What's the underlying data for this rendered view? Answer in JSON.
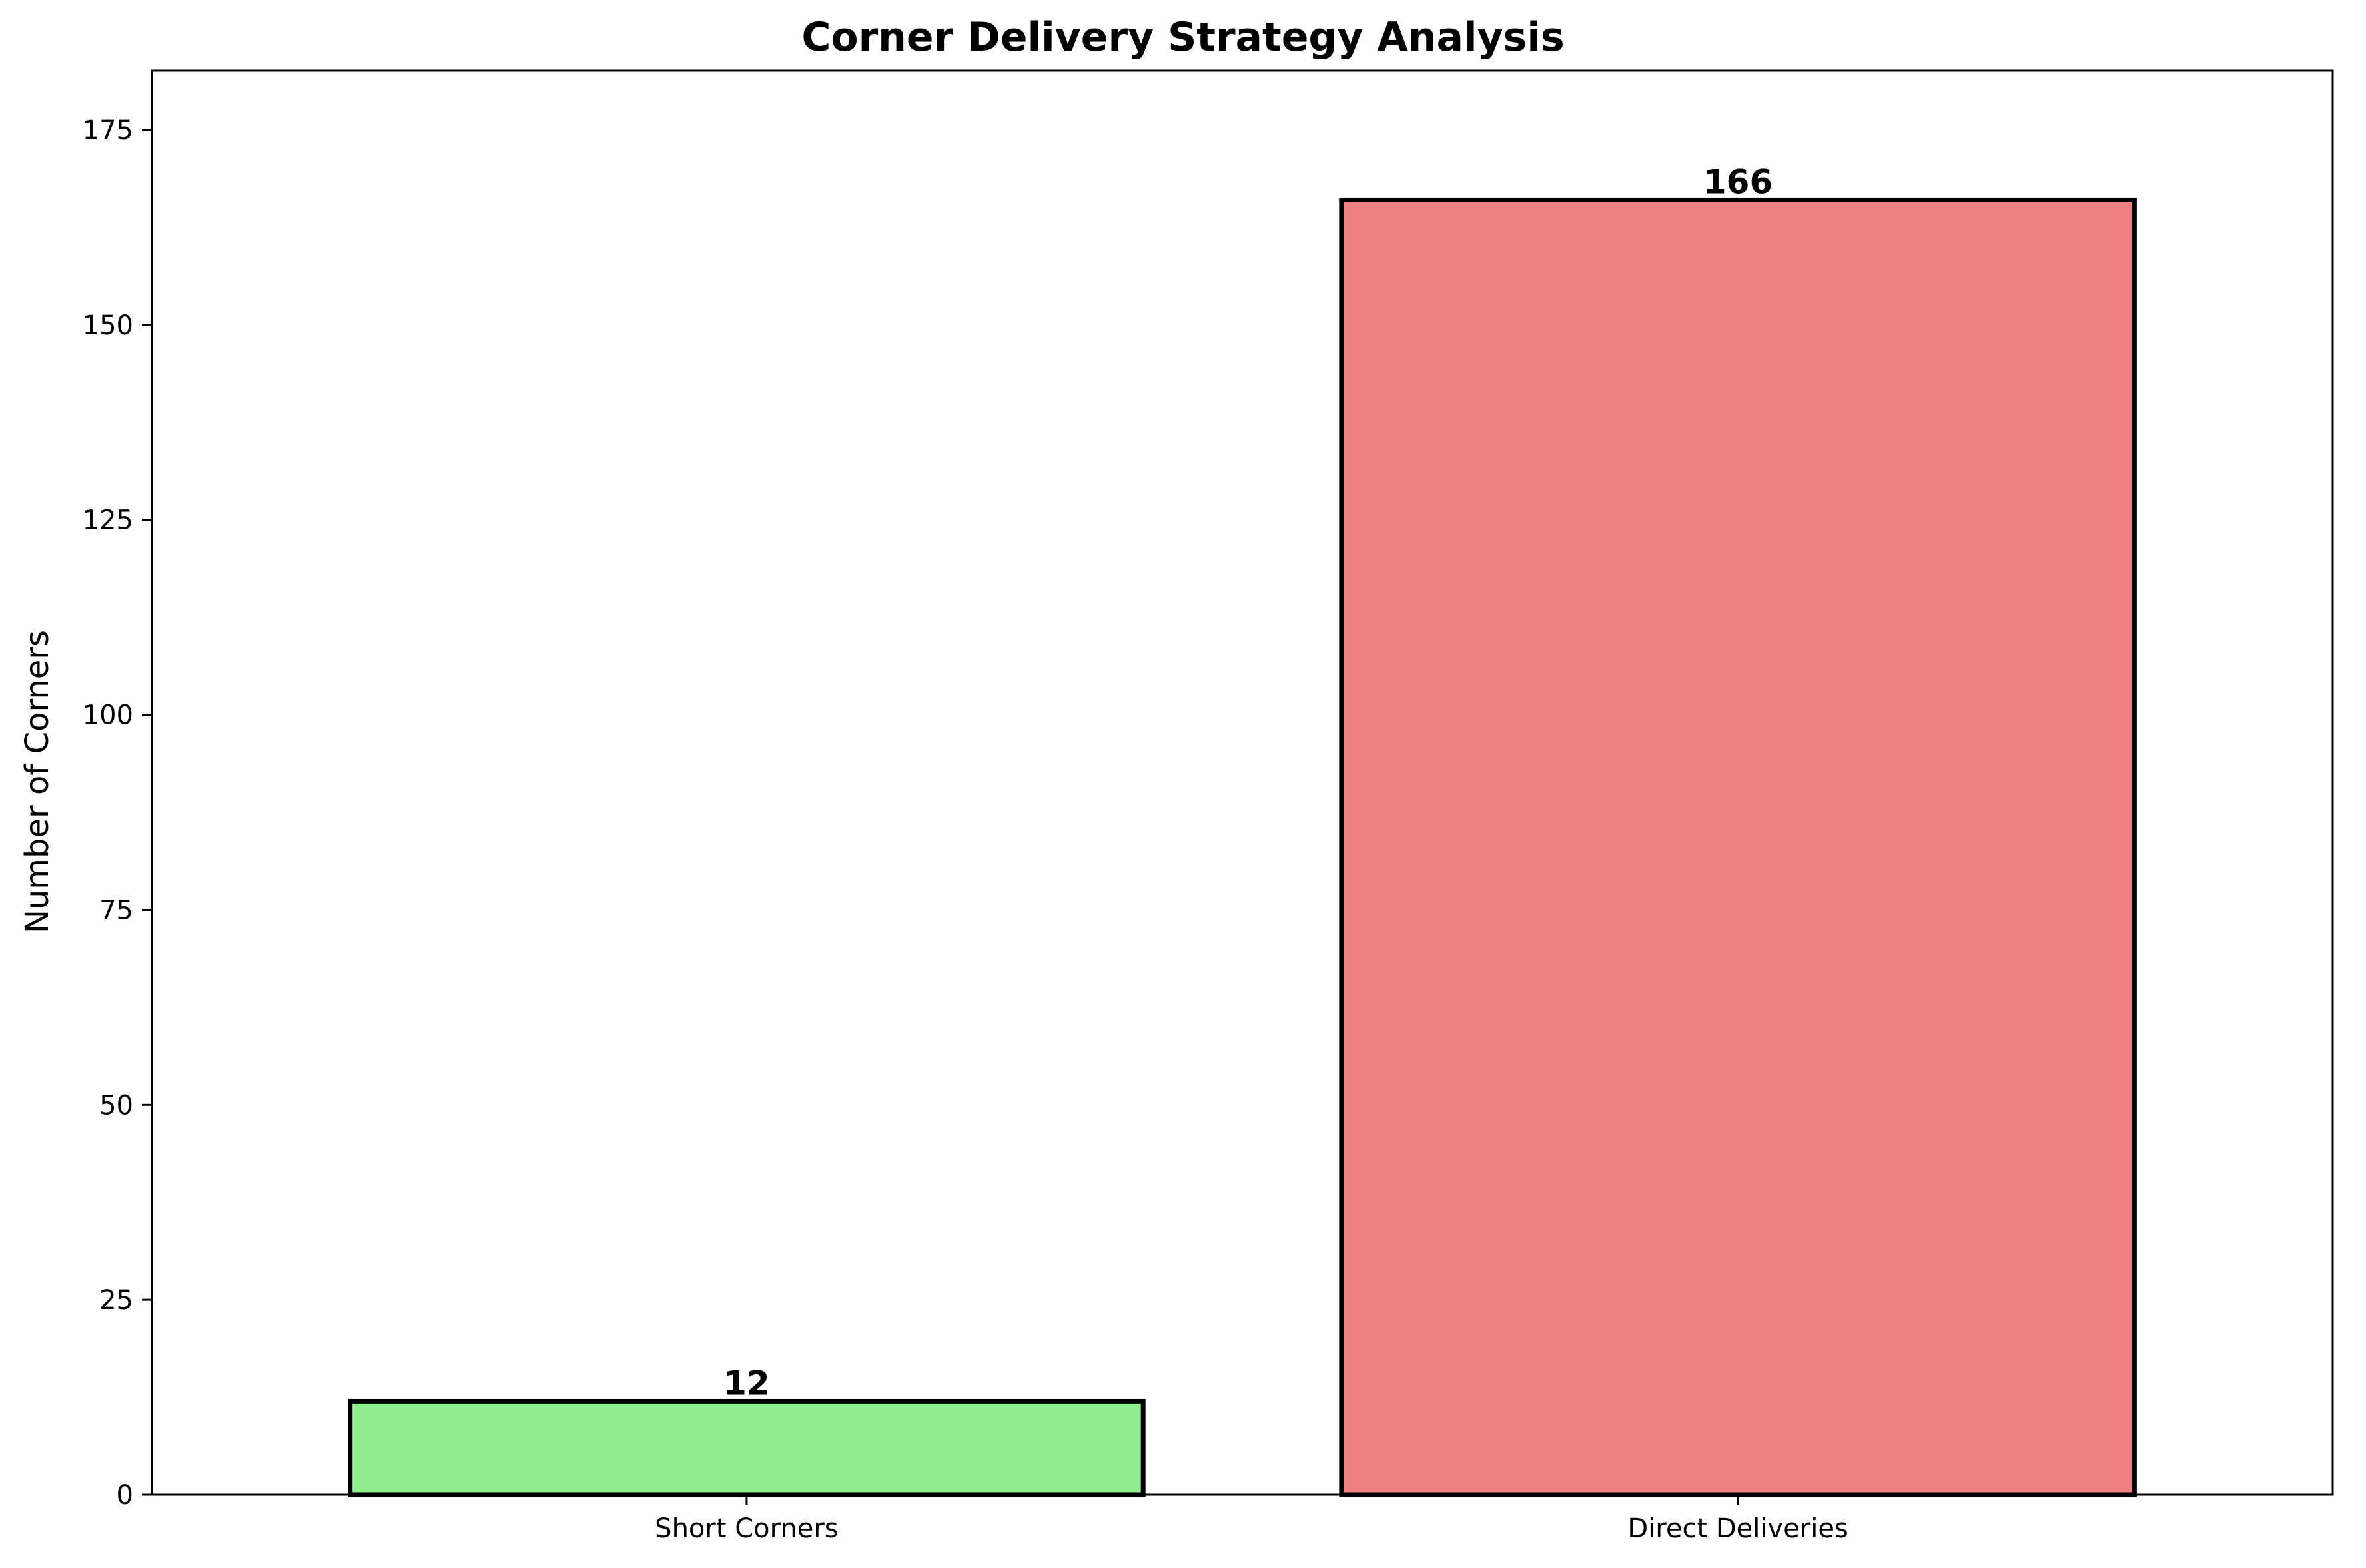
{
  "chart_data": {
    "type": "bar",
    "title": "Corner Delivery Strategy Analysis",
    "xlabel": "",
    "ylabel": "Number of Corners",
    "categories": [
      "Short Corners",
      "Direct Deliveries"
    ],
    "values": [
      12,
      166
    ],
    "data_labels": [
      "12",
      "166"
    ],
    "colors": [
      "#90EE90",
      "#F08080"
    ],
    "edge_color": "#000000",
    "ylim": [
      0,
      182.6
    ],
    "yticks": [
      0,
      25,
      50,
      75,
      100,
      125,
      150,
      175
    ],
    "ytick_labels": [
      "0",
      "25",
      "50",
      "75",
      "100",
      "125",
      "150",
      "175"
    ],
    "grid": false,
    "legend": "none"
  }
}
